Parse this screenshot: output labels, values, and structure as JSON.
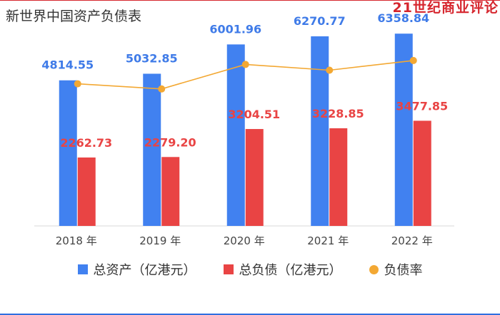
{
  "header": {
    "title": "新世界中国资产负债表",
    "brand": "21世纪商业评论"
  },
  "legend": {
    "items": [
      {
        "label": "总资产（亿港元）",
        "color": "#4181f0",
        "shape": "square"
      },
      {
        "label": "总负债（亿港元）",
        "color": "#e94444",
        "shape": "square"
      },
      {
        "label": "负债率",
        "color": "#f3a833",
        "shape": "dot"
      }
    ]
  },
  "chart_data": {
    "type": "bar",
    "title": "新世界中国资产负债表",
    "categories": [
      "2018 年",
      "2019 年",
      "2020 年",
      "2021 年",
      "2022 年"
    ],
    "series": [
      {
        "name": "总资产（亿港元）",
        "type": "bar",
        "color": "#4181f0",
        "label_color": "#3f7be8",
        "values": [
          4814.55,
          5032.85,
          6001.96,
          6270.77,
          6358.84
        ]
      },
      {
        "name": "总负债（亿港元）",
        "type": "bar",
        "color": "#e94444",
        "label_color": "#e94444",
        "values": [
          2262.73,
          2279.2,
          3204.51,
          3228.85,
          3477.85
        ]
      },
      {
        "name": "负债率",
        "type": "line",
        "color": "#f3a833",
        "values": [
          47.0,
          45.3,
          53.4,
          51.5,
          54.7
        ]
      }
    ],
    "ylim": [
      0,
      7000
    ],
    "ratio_ylim": [
      0,
      70
    ],
    "grid": false,
    "legend_position": "bottom"
  }
}
